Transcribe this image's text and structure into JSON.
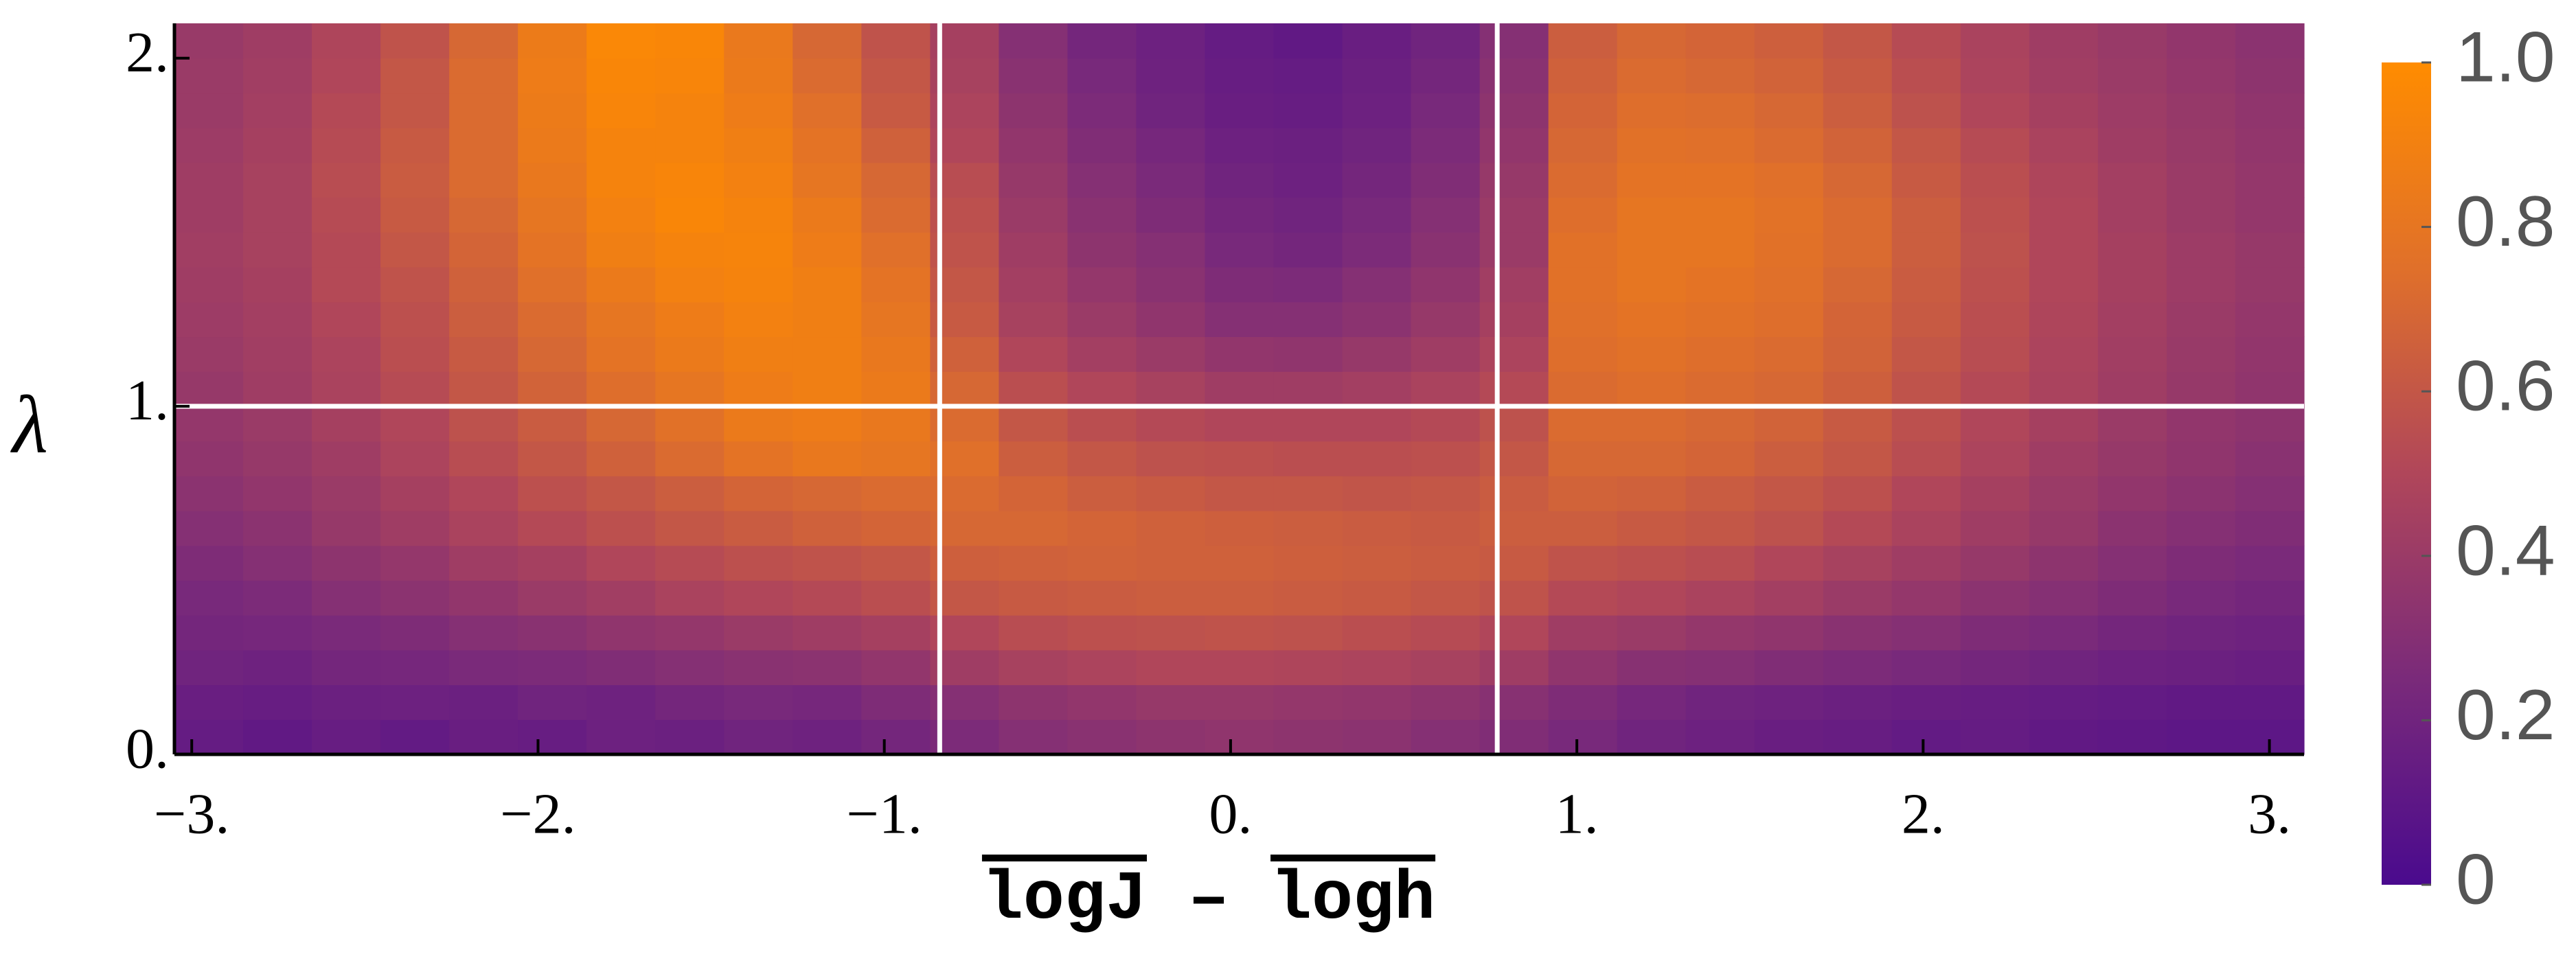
{
  "chart_data": {
    "type": "heatmap",
    "xlabel_parts": [
      "logJ",
      "–",
      "logh"
    ],
    "ylabel": "λ",
    "xlim": [
      -3.05,
      3.1
    ],
    "ylim": [
      0,
      2.1
    ],
    "zlim": [
      0,
      1
    ],
    "xticks": [
      {
        "value": -3,
        "label": "−3."
      },
      {
        "value": -2,
        "label": "−2."
      },
      {
        "value": -1,
        "label": "−1."
      },
      {
        "value": 0,
        "label": "0."
      },
      {
        "value": 1,
        "label": "1."
      },
      {
        "value": 2,
        "label": "2."
      },
      {
        "value": 3,
        "label": "3."
      }
    ],
    "yticks": [
      {
        "value": 0,
        "label": "0."
      },
      {
        "value": 1,
        "label": "1."
      },
      {
        "value": 2,
        "label": "2."
      }
    ],
    "colorbar_ticks": [
      0,
      0.2,
      0.4,
      0.6,
      0.8,
      {
        "value": 1,
        "label": "1.0"
      }
    ],
    "colormap": [
      "#4a0a8e",
      "#7a2a7a",
      "#b0465a",
      "#e0702a",
      "#ff8c00"
    ],
    "vlines": [
      -0.84,
      0.77
    ],
    "hlines": [
      1
    ],
    "line_color": "#ffffff",
    "z": [
      [
        0.14,
        0.12,
        0.15,
        0.13,
        0.16,
        0.15,
        0.18,
        0.17,
        0.2,
        0.19,
        0.22,
        0.26,
        0.3,
        0.32,
        0.34,
        0.35,
        0.34,
        0.33,
        0.3,
        0.28,
        0.24,
        0.2,
        0.18,
        0.16,
        0.15,
        0.13,
        0.14,
        0.12,
        0.11,
        0.1,
        0.1
      ],
      [
        0.16,
        0.15,
        0.17,
        0.18,
        0.17,
        0.2,
        0.19,
        0.22,
        0.24,
        0.23,
        0.27,
        0.3,
        0.34,
        0.36,
        0.38,
        0.38,
        0.37,
        0.36,
        0.34,
        0.31,
        0.27,
        0.23,
        0.2,
        0.19,
        0.17,
        0.16,
        0.15,
        0.14,
        0.13,
        0.12,
        0.12
      ],
      [
        0.2,
        0.19,
        0.22,
        0.23,
        0.25,
        0.26,
        0.28,
        0.3,
        0.32,
        0.33,
        0.36,
        0.42,
        0.46,
        0.48,
        0.5,
        0.5,
        0.49,
        0.48,
        0.46,
        0.42,
        0.35,
        0.31,
        0.3,
        0.28,
        0.26,
        0.24,
        0.22,
        0.2,
        0.18,
        0.17,
        0.16
      ],
      [
        0.22,
        0.23,
        0.25,
        0.27,
        0.3,
        0.32,
        0.35,
        0.37,
        0.4,
        0.42,
        0.45,
        0.5,
        0.54,
        0.56,
        0.57,
        0.58,
        0.57,
        0.55,
        0.53,
        0.5,
        0.42,
        0.4,
        0.37,
        0.35,
        0.32,
        0.3,
        0.27,
        0.25,
        0.22,
        0.2,
        0.19
      ],
      [
        0.24,
        0.26,
        0.3,
        0.33,
        0.36,
        0.4,
        0.43,
        0.47,
        0.5,
        0.52,
        0.55,
        0.6,
        0.62,
        0.63,
        0.64,
        0.64,
        0.63,
        0.62,
        0.6,
        0.58,
        0.52,
        0.5,
        0.47,
        0.44,
        0.4,
        0.37,
        0.33,
        0.3,
        0.27,
        0.24,
        0.22
      ],
      [
        0.27,
        0.3,
        0.34,
        0.37,
        0.42,
        0.45,
        0.5,
        0.53,
        0.56,
        0.58,
        0.6,
        0.65,
        0.66,
        0.67,
        0.66,
        0.66,
        0.65,
        0.64,
        0.63,
        0.62,
        0.58,
        0.56,
        0.54,
        0.5,
        0.46,
        0.42,
        0.38,
        0.34,
        0.3,
        0.27,
        0.25
      ],
      [
        0.3,
        0.33,
        0.38,
        0.42,
        0.47,
        0.52,
        0.56,
        0.6,
        0.63,
        0.66,
        0.68,
        0.7,
        0.7,
        0.68,
        0.66,
        0.65,
        0.64,
        0.63,
        0.62,
        0.64,
        0.64,
        0.62,
        0.6,
        0.57,
        0.52,
        0.47,
        0.42,
        0.38,
        0.33,
        0.3,
        0.28
      ],
      [
        0.33,
        0.36,
        0.4,
        0.45,
        0.5,
        0.56,
        0.6,
        0.64,
        0.68,
        0.7,
        0.72,
        0.72,
        0.68,
        0.64,
        0.62,
        0.6,
        0.6,
        0.59,
        0.6,
        0.63,
        0.67,
        0.66,
        0.63,
        0.6,
        0.56,
        0.5,
        0.45,
        0.4,
        0.36,
        0.33,
        0.3
      ],
      [
        0.35,
        0.38,
        0.42,
        0.48,
        0.54,
        0.6,
        0.66,
        0.72,
        0.78,
        0.82,
        0.8,
        0.75,
        0.64,
        0.6,
        0.57,
        0.56,
        0.55,
        0.55,
        0.56,
        0.6,
        0.7,
        0.7,
        0.68,
        0.64,
        0.6,
        0.54,
        0.48,
        0.42,
        0.38,
        0.35,
        0.32
      ],
      [
        0.37,
        0.4,
        0.45,
        0.5,
        0.57,
        0.63,
        0.7,
        0.76,
        0.84,
        0.86,
        0.82,
        0.72,
        0.6,
        0.55,
        0.52,
        0.5,
        0.5,
        0.5,
        0.52,
        0.57,
        0.72,
        0.72,
        0.7,
        0.67,
        0.62,
        0.56,
        0.5,
        0.45,
        0.4,
        0.36,
        0.34
      ],
      [
        0.38,
        0.42,
        0.47,
        0.53,
        0.6,
        0.67,
        0.74,
        0.8,
        0.86,
        0.88,
        0.84,
        0.7,
        0.55,
        0.5,
        0.46,
        0.42,
        0.42,
        0.44,
        0.47,
        0.52,
        0.72,
        0.74,
        0.72,
        0.7,
        0.65,
        0.58,
        0.52,
        0.47,
        0.42,
        0.38,
        0.35
      ],
      [
        0.4,
        0.43,
        0.48,
        0.55,
        0.62,
        0.7,
        0.78,
        0.84,
        0.88,
        0.88,
        0.82,
        0.66,
        0.5,
        0.44,
        0.4,
        0.36,
        0.35,
        0.38,
        0.42,
        0.48,
        0.74,
        0.76,
        0.74,
        0.72,
        0.67,
        0.6,
        0.54,
        0.48,
        0.43,
        0.39,
        0.36
      ],
      [
        0.41,
        0.44,
        0.5,
        0.56,
        0.64,
        0.72,
        0.8,
        0.86,
        0.9,
        0.88,
        0.8,
        0.62,
        0.46,
        0.4,
        0.35,
        0.3,
        0.3,
        0.33,
        0.38,
        0.45,
        0.75,
        0.78,
        0.76,
        0.74,
        0.68,
        0.62,
        0.55,
        0.49,
        0.44,
        0.4,
        0.37
      ],
      [
        0.42,
        0.45,
        0.52,
        0.58,
        0.66,
        0.75,
        0.84,
        0.9,
        0.92,
        0.88,
        0.78,
        0.6,
        0.44,
        0.37,
        0.32,
        0.27,
        0.26,
        0.3,
        0.35,
        0.43,
        0.76,
        0.8,
        0.78,
        0.75,
        0.7,
        0.63,
        0.56,
        0.5,
        0.45,
        0.41,
        0.38
      ],
      [
        0.43,
        0.46,
        0.52,
        0.6,
        0.68,
        0.78,
        0.88,
        0.92,
        0.93,
        0.86,
        0.75,
        0.58,
        0.42,
        0.34,
        0.3,
        0.24,
        0.22,
        0.26,
        0.32,
        0.4,
        0.76,
        0.8,
        0.8,
        0.76,
        0.72,
        0.64,
        0.57,
        0.5,
        0.45,
        0.41,
        0.38
      ],
      [
        0.42,
        0.46,
        0.53,
        0.62,
        0.7,
        0.8,
        0.9,
        0.95,
        0.92,
        0.84,
        0.72,
        0.56,
        0.4,
        0.32,
        0.27,
        0.22,
        0.2,
        0.24,
        0.3,
        0.4,
        0.74,
        0.8,
        0.8,
        0.77,
        0.72,
        0.64,
        0.56,
        0.5,
        0.44,
        0.4,
        0.37
      ],
      [
        0.42,
        0.46,
        0.54,
        0.63,
        0.72,
        0.82,
        0.92,
        0.94,
        0.9,
        0.8,
        0.7,
        0.54,
        0.38,
        0.3,
        0.25,
        0.2,
        0.18,
        0.22,
        0.28,
        0.38,
        0.72,
        0.78,
        0.78,
        0.75,
        0.7,
        0.62,
        0.55,
        0.49,
        0.44,
        0.4,
        0.37
      ],
      [
        0.41,
        0.45,
        0.53,
        0.62,
        0.72,
        0.84,
        0.92,
        0.92,
        0.88,
        0.78,
        0.66,
        0.5,
        0.36,
        0.28,
        0.23,
        0.18,
        0.17,
        0.2,
        0.26,
        0.36,
        0.7,
        0.76,
        0.75,
        0.72,
        0.67,
        0.6,
        0.53,
        0.47,
        0.42,
        0.39,
        0.36
      ],
      [
        0.4,
        0.44,
        0.52,
        0.6,
        0.72,
        0.85,
        0.94,
        0.92,
        0.86,
        0.75,
        0.62,
        0.48,
        0.34,
        0.26,
        0.2,
        0.16,
        0.15,
        0.18,
        0.24,
        0.34,
        0.68,
        0.74,
        0.73,
        0.7,
        0.64,
        0.57,
        0.5,
        0.45,
        0.41,
        0.38,
        0.35
      ],
      [
        0.4,
        0.43,
        0.5,
        0.6,
        0.72,
        0.86,
        0.95,
        0.94,
        0.84,
        0.72,
        0.6,
        0.46,
        0.32,
        0.24,
        0.19,
        0.15,
        0.14,
        0.17,
        0.22,
        0.32,
        0.66,
        0.72,
        0.7,
        0.67,
        0.62,
        0.55,
        0.48,
        0.43,
        0.4,
        0.37,
        0.34
      ],
      [
        0.39,
        0.42,
        0.49,
        0.58,
        0.7,
        0.85,
        0.96,
        0.95,
        0.83,
        0.7,
        0.58,
        0.45,
        0.3,
        0.22,
        0.18,
        0.14,
        0.12,
        0.16,
        0.2,
        0.3,
        0.64,
        0.7,
        0.68,
        0.65,
        0.6,
        0.53,
        0.47,
        0.42,
        0.39,
        0.36,
        0.33
      ]
    ]
  }
}
